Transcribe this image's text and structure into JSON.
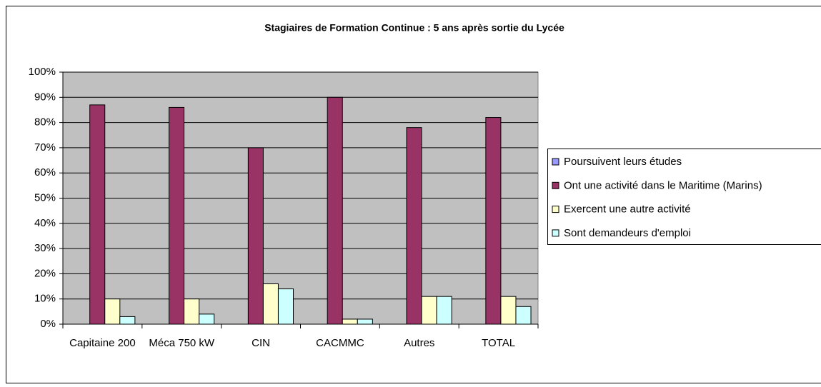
{
  "chart_data": {
    "type": "bar",
    "title": "Stagiaires de Formation Continue : 5 ans après sortie du Lycée",
    "categories": [
      "Capitaine 200",
      "Méca 750 kW",
      "CIN",
      "CACMMC",
      "Autres",
      "TOTAL"
    ],
    "series": [
      {
        "name": "Poursuivent leurs études",
        "color": "#9999ff",
        "values": [
          0,
          0,
          0,
          0,
          0,
          0
        ]
      },
      {
        "name": "Ont une activité dans le Maritime (Marins)",
        "color": "#993366",
        "values": [
          87,
          86,
          70,
          90,
          78,
          82
        ]
      },
      {
        "name": "Exercent une autre activité",
        "color": "#ffffcc",
        "values": [
          10,
          10,
          16,
          2,
          11,
          11
        ]
      },
      {
        "name": "Sont demandeurs d'emploi",
        "color": "#ccffff",
        "values": [
          3,
          4,
          14,
          2,
          11,
          7
        ]
      }
    ],
    "ylim": [
      0,
      100
    ],
    "yticks": [
      {
        "value": 0,
        "label": "0%"
      },
      {
        "value": 10,
        "label": "10%"
      },
      {
        "value": 20,
        "label": "20%"
      },
      {
        "value": 30,
        "label": "30%"
      },
      {
        "value": 40,
        "label": "40%"
      },
      {
        "value": 50,
        "label": "50%"
      },
      {
        "value": 60,
        "label": "60%"
      },
      {
        "value": 70,
        "label": "70%"
      },
      {
        "value": 80,
        "label": "80%"
      },
      {
        "value": 90,
        "label": "90%"
      },
      {
        "value": 100,
        "label": "100%"
      }
    ],
    "grid": true,
    "legend": "right"
  }
}
